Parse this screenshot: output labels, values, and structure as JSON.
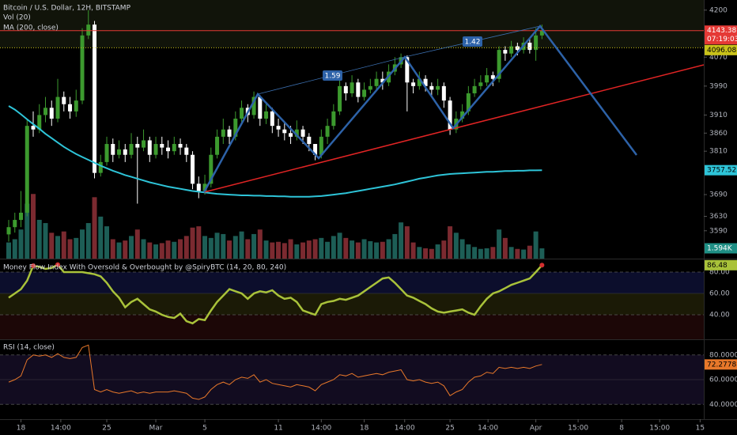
{
  "chart_data": [
    {
      "type": "candlestick",
      "title": "Bitcoin / U.S. Dollar, 12H, BITSTAMP",
      "volume_title": "Vol (20)",
      "ma_title": "MA (200, close)",
      "xlim": [
        -1.42,
        113.4
      ],
      "xticks": [
        {
          "value": 2,
          "label": "18"
        },
        {
          "value": 8.5,
          "label": "14:00"
        },
        {
          "value": 16,
          "label": "25"
        },
        {
          "value": 24,
          "label": "Mar"
        },
        {
          "value": 32,
          "label": "5"
        },
        {
          "value": 44,
          "label": "11"
        },
        {
          "value": 51,
          "label": "14:00"
        },
        {
          "value": 58,
          "label": "18"
        },
        {
          "value": 64.6,
          "label": "14:00"
        },
        {
          "value": 72,
          "label": "25"
        },
        {
          "value": 78.2,
          "label": "14:00"
        },
        {
          "value": 86,
          "label": "Apr"
        },
        {
          "value": 92.9,
          "label": "15:00"
        },
        {
          "value": 100,
          "label": "8"
        },
        {
          "value": 106.2,
          "label": "15:00"
        },
        {
          "value": 112.8,
          "label": "15"
        }
      ],
      "ylim": [
        3513,
        4228
      ],
      "yticks": [
        4200,
        4070,
        3990,
        3910,
        3860,
        3810,
        3690,
        3630,
        3590
      ],
      "up_color": "#3c9a2e",
      "down_color": "#ffffff",
      "open": [
        3580,
        3600,
        3620,
        3640,
        3880,
        3870,
        3910,
        3930,
        3900,
        3960,
        3940,
        3920,
        3950,
        4130,
        4160,
        3750,
        3780,
        3830,
        3800,
        3815,
        3800,
        3830,
        3820,
        3840,
        3800,
        3830,
        3820,
        3810,
        3830,
        3820,
        3800,
        3720,
        3700,
        3720,
        3800,
        3850,
        3870,
        3850,
        3900,
        3930,
        3910,
        3960,
        3900,
        3920,
        3880,
        3870,
        3860,
        3850,
        3870,
        3850,
        3830,
        3800,
        3850,
        3880,
        3920,
        3990,
        3970,
        4000,
        3960,
        3980,
        3990,
        4010,
        4000,
        4030,
        4050,
        4070,
        4000,
        3990,
        4010,
        3990,
        3980,
        3990,
        3950,
        3870,
        3900,
        3920,
        3970,
        3990,
        4000,
        4020,
        4010,
        4090,
        4080,
        4100,
        4090,
        4110,
        4090,
        4130
      ],
      "high": [
        3620,
        3640,
        3700,
        3900,
        3920,
        3940,
        3960,
        3950,
        4010,
        3975,
        3960,
        3980,
        4150,
        4200,
        4170,
        3800,
        3850,
        3845,
        3840,
        3830,
        3860,
        3850,
        3870,
        3850,
        3850,
        3850,
        3840,
        3850,
        3845,
        3830,
        3810,
        3740,
        3745,
        3820,
        3870,
        3900,
        3880,
        3920,
        3950,
        3940,
        3975,
        3965,
        3940,
        3930,
        3900,
        3890,
        3880,
        3895,
        3880,
        3860,
        3830,
        3870,
        3900,
        3940,
        4010,
        4000,
        4020,
        4010,
        4000,
        4010,
        4030,
        4030,
        4050,
        4070,
        4080,
        4075,
        4010,
        4030,
        4020,
        4000,
        4010,
        4000,
        3960,
        3920,
        3940,
        3990,
        4010,
        4020,
        4040,
        4030,
        4100,
        4100,
        4115,
        4110,
        4125,
        4120,
        4150,
        4160
      ],
      "low": [
        3560,
        3585,
        3600,
        3630,
        3850,
        3860,
        3890,
        3880,
        3890,
        3920,
        3900,
        3905,
        3940,
        4120,
        3735,
        3740,
        3770,
        3780,
        3790,
        3780,
        3790,
        3665,
        3810,
        3780,
        3790,
        3800,
        3790,
        3800,
        3800,
        3780,
        3705,
        3680,
        3690,
        3710,
        3790,
        3830,
        3830,
        3840,
        3890,
        3890,
        3900,
        3880,
        3885,
        3860,
        3850,
        3840,
        3830,
        3840,
        3830,
        3810,
        3785,
        3790,
        3830,
        3870,
        3910,
        3950,
        3960,
        3945,
        3950,
        3970,
        3980,
        3980,
        3990,
        4020,
        4040,
        3920,
        3970,
        3980,
        3975,
        3960,
        3965,
        3930,
        3855,
        3860,
        3890,
        3910,
        3960,
        3980,
        3990,
        3990,
        4000,
        4060,
        4070,
        4075,
        4080,
        4080,
        4060,
        4120
      ],
      "close": [
        3600,
        3620,
        3640,
        3880,
        3870,
        3910,
        3930,
        3900,
        3960,
        3940,
        3920,
        3950,
        4130,
        4160,
        3750,
        3780,
        3830,
        3800,
        3815,
        3800,
        3830,
        3820,
        3840,
        3800,
        3830,
        3820,
        3810,
        3830,
        3820,
        3800,
        3720,
        3700,
        3720,
        3800,
        3850,
        3870,
        3850,
        3900,
        3930,
        3910,
        3960,
        3900,
        3920,
        3880,
        3870,
        3860,
        3850,
        3870,
        3850,
        3830,
        3800,
        3850,
        3880,
        3920,
        3990,
        3970,
        4000,
        3960,
        3980,
        3990,
        4010,
        4000,
        4030,
        4050,
        4070,
        4000,
        3990,
        4010,
        3990,
        3980,
        3990,
        3950,
        3870,
        3900,
        3920,
        3970,
        3990,
        4000,
        4020,
        4010,
        4090,
        4080,
        4100,
        4090,
        4110,
        4090,
        4130,
        4143.38
      ],
      "volume": {
        "ylim": [
          0,
          40000
        ],
        "up_color": "#1d5e56",
        "down_color": "#7b2a30",
        "values": [
          2500,
          3000,
          4500,
          8500,
          10000,
          6000,
          5500,
          4000,
          3500,
          4200,
          3000,
          3200,
          4500,
          5500,
          9500,
          6500,
          5000,
          3000,
          2500,
          2800,
          3500,
          4500,
          3000,
          2500,
          2200,
          2400,
          2800,
          2600,
          3000,
          3500,
          4800,
          5000,
          3500,
          3200,
          4000,
          3800,
          2800,
          3500,
          4200,
          3000,
          3800,
          4500,
          2800,
          2500,
          2600,
          2400,
          3000,
          2200,
          2500,
          2800,
          3000,
          3200,
          2600,
          3500,
          4000,
          3200,
          2800,
          2500,
          3000,
          2700,
          2500,
          2600,
          3000,
          3800,
          5600,
          5000,
          2500,
          1800,
          1600,
          1500,
          2200,
          2800,
          5000,
          4000,
          3000,
          2200,
          1800,
          1500,
          1600,
          1800,
          4500,
          3200,
          1800,
          1500,
          1400,
          2000,
          4200,
          1594
        ],
        "value_labels": {
          "87": "1.594K"
        }
      },
      "ma": {
        "color": "#2ec4d8",
        "values": [
          3935,
          3925,
          3912,
          3898,
          3885,
          3872,
          3858,
          3846,
          3834,
          3822,
          3812,
          3802,
          3794,
          3786,
          3778,
          3770,
          3763,
          3756,
          3750,
          3744,
          3739,
          3734,
          3729,
          3724,
          3720,
          3716,
          3712,
          3709,
          3706,
          3703,
          3700,
          3698,
          3696,
          3694,
          3692,
          3691,
          3690,
          3689,
          3688,
          3688,
          3687,
          3687,
          3686,
          3686,
          3685,
          3685,
          3684,
          3684,
          3684,
          3684,
          3685,
          3686,
          3688,
          3690,
          3692,
          3694,
          3697,
          3700,
          3703,
          3706,
          3709,
          3712,
          3715,
          3718,
          3722,
          3726,
          3730,
          3734,
          3737,
          3740,
          3743,
          3745,
          3747,
          3748,
          3749,
          3750,
          3751,
          3752,
          3753,
          3753,
          3754,
          3755,
          3755,
          3756,
          3756,
          3757,
          3757,
          3757.52
        ]
      },
      "countdown": "07:19:03",
      "price_line": 4096.08,
      "annotations": [
        "1.59",
        "1.42"
      ]
    },
    {
      "type": "line",
      "title": "Money Flow Index With Oversold & Overbought by @SpiryBTC (14, 20, 80, 240)",
      "color": "#a9c23a",
      "overbought": 80,
      "ylim": [
        17,
        91.9
      ],
      "yticks": [
        {
          "value": 80,
          "label": "80.00"
        },
        {
          "value": 60,
          "label": "60.00"
        },
        {
          "value": 40,
          "label": "40.00"
        }
      ],
      "values": [
        56,
        60,
        64,
        72,
        86,
        85,
        83,
        84,
        87,
        80,
        80,
        80,
        80,
        79,
        78,
        76,
        70,
        62,
        56,
        47,
        52,
        55,
        50,
        45,
        43,
        40,
        38,
        37,
        41,
        34,
        32,
        36,
        35,
        44,
        52,
        58,
        64,
        62,
        60,
        55,
        60,
        62,
        61,
        63,
        58,
        55,
        56,
        52,
        44,
        42,
        40,
        50,
        52,
        53,
        55,
        54,
        56,
        58,
        62,
        66,
        70,
        74,
        75,
        70,
        64,
        58,
        56,
        53,
        50,
        46,
        43,
        42,
        43,
        44,
        45,
        42,
        40,
        48,
        55,
        60,
        62,
        65,
        68,
        70,
        72,
        74,
        80,
        86.48
      ]
    },
    {
      "type": "line",
      "title": "RSI (14, close)",
      "color": "#e8782a",
      "ylim": [
        28,
        92
      ],
      "yticks": [
        {
          "value": 80,
          "label": "80.0000"
        },
        {
          "value": 60,
          "label": "60.0000"
        },
        {
          "value": 40,
          "label": "40.0000"
        }
      ],
      "values": [
        58,
        60,
        63,
        76,
        80,
        79,
        80,
        78,
        81,
        78,
        77,
        78,
        86,
        88,
        52,
        50,
        52,
        50,
        49,
        50,
        51,
        49,
        50,
        49,
        50,
        50,
        50,
        51,
        50,
        49,
        45,
        44,
        46,
        52,
        56,
        58,
        56,
        60,
        62,
        61,
        64,
        58,
        60,
        57,
        56,
        55,
        54,
        56,
        55,
        54,
        51,
        56,
        58,
        60,
        64,
        63,
        65,
        62,
        63,
        64,
        65,
        64,
        66,
        67,
        68,
        60,
        59,
        60,
        58,
        57,
        58,
        55,
        47,
        50,
        52,
        58,
        62,
        63,
        66,
        65,
        70,
        69,
        70,
        69,
        70,
        69,
        71,
        72.2778
      ]
    }
  ]
}
